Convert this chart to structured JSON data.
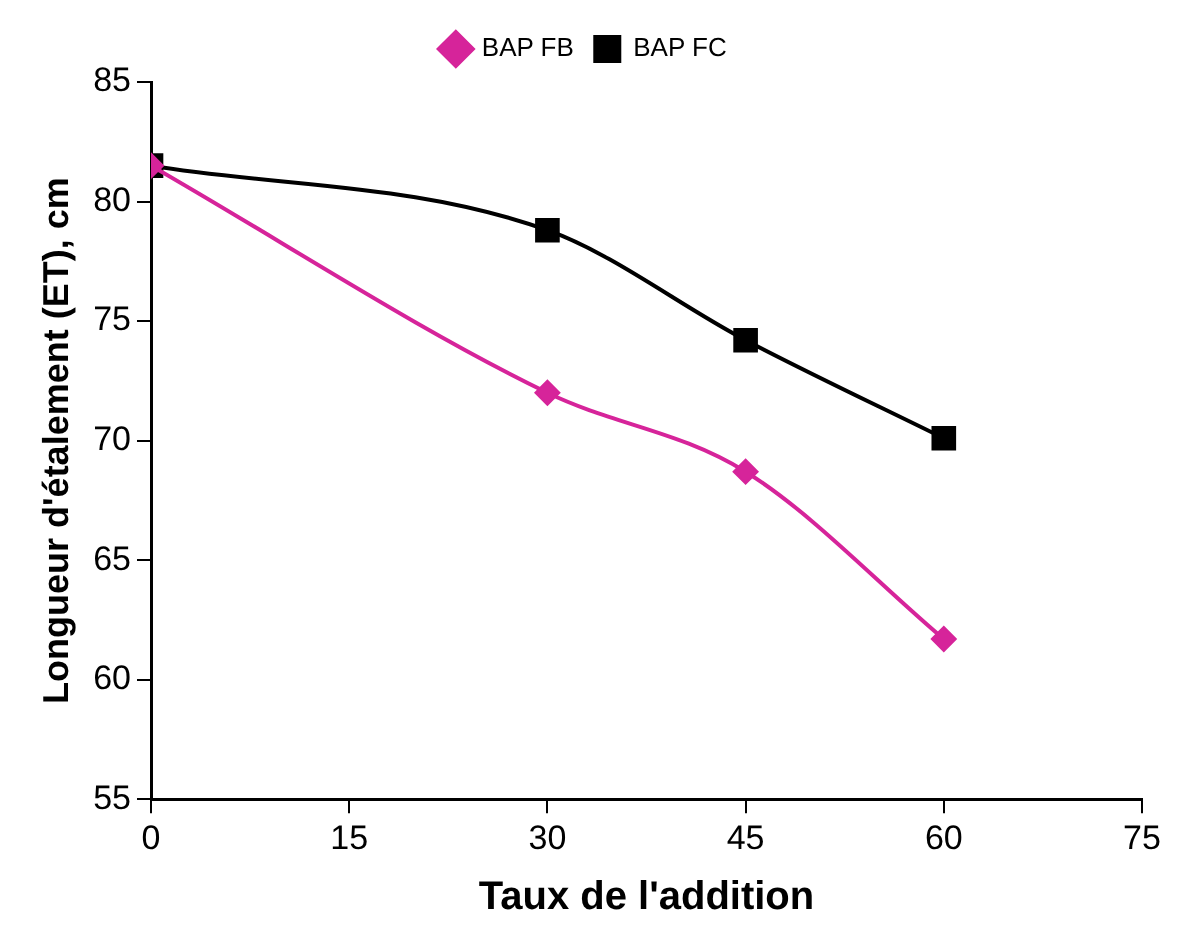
{
  "chart_data": {
    "type": "line",
    "xlabel": "Taux de l'addition",
    "ylabel": "Longueur d'étalement (ET), cm",
    "x": [
      0,
      30,
      45,
      60
    ],
    "series": [
      {
        "name": "BAP FB",
        "color": "#d6249a",
        "marker": "diamond",
        "values": [
          81.5,
          72.0,
          68.7,
          61.7
        ]
      },
      {
        "name": "BAP FC",
        "color": "#000000",
        "marker": "square",
        "values": [
          81.5,
          78.8,
          74.2,
          70.1
        ]
      }
    ],
    "xlim": [
      0,
      75
    ],
    "xticks": [
      0,
      15,
      30,
      45,
      60,
      75
    ],
    "ylim": [
      55,
      85
    ],
    "yticks": [
      55,
      60,
      65,
      70,
      75,
      80,
      85
    ],
    "grid": false,
    "legend": "top",
    "line_style": "solid"
  }
}
